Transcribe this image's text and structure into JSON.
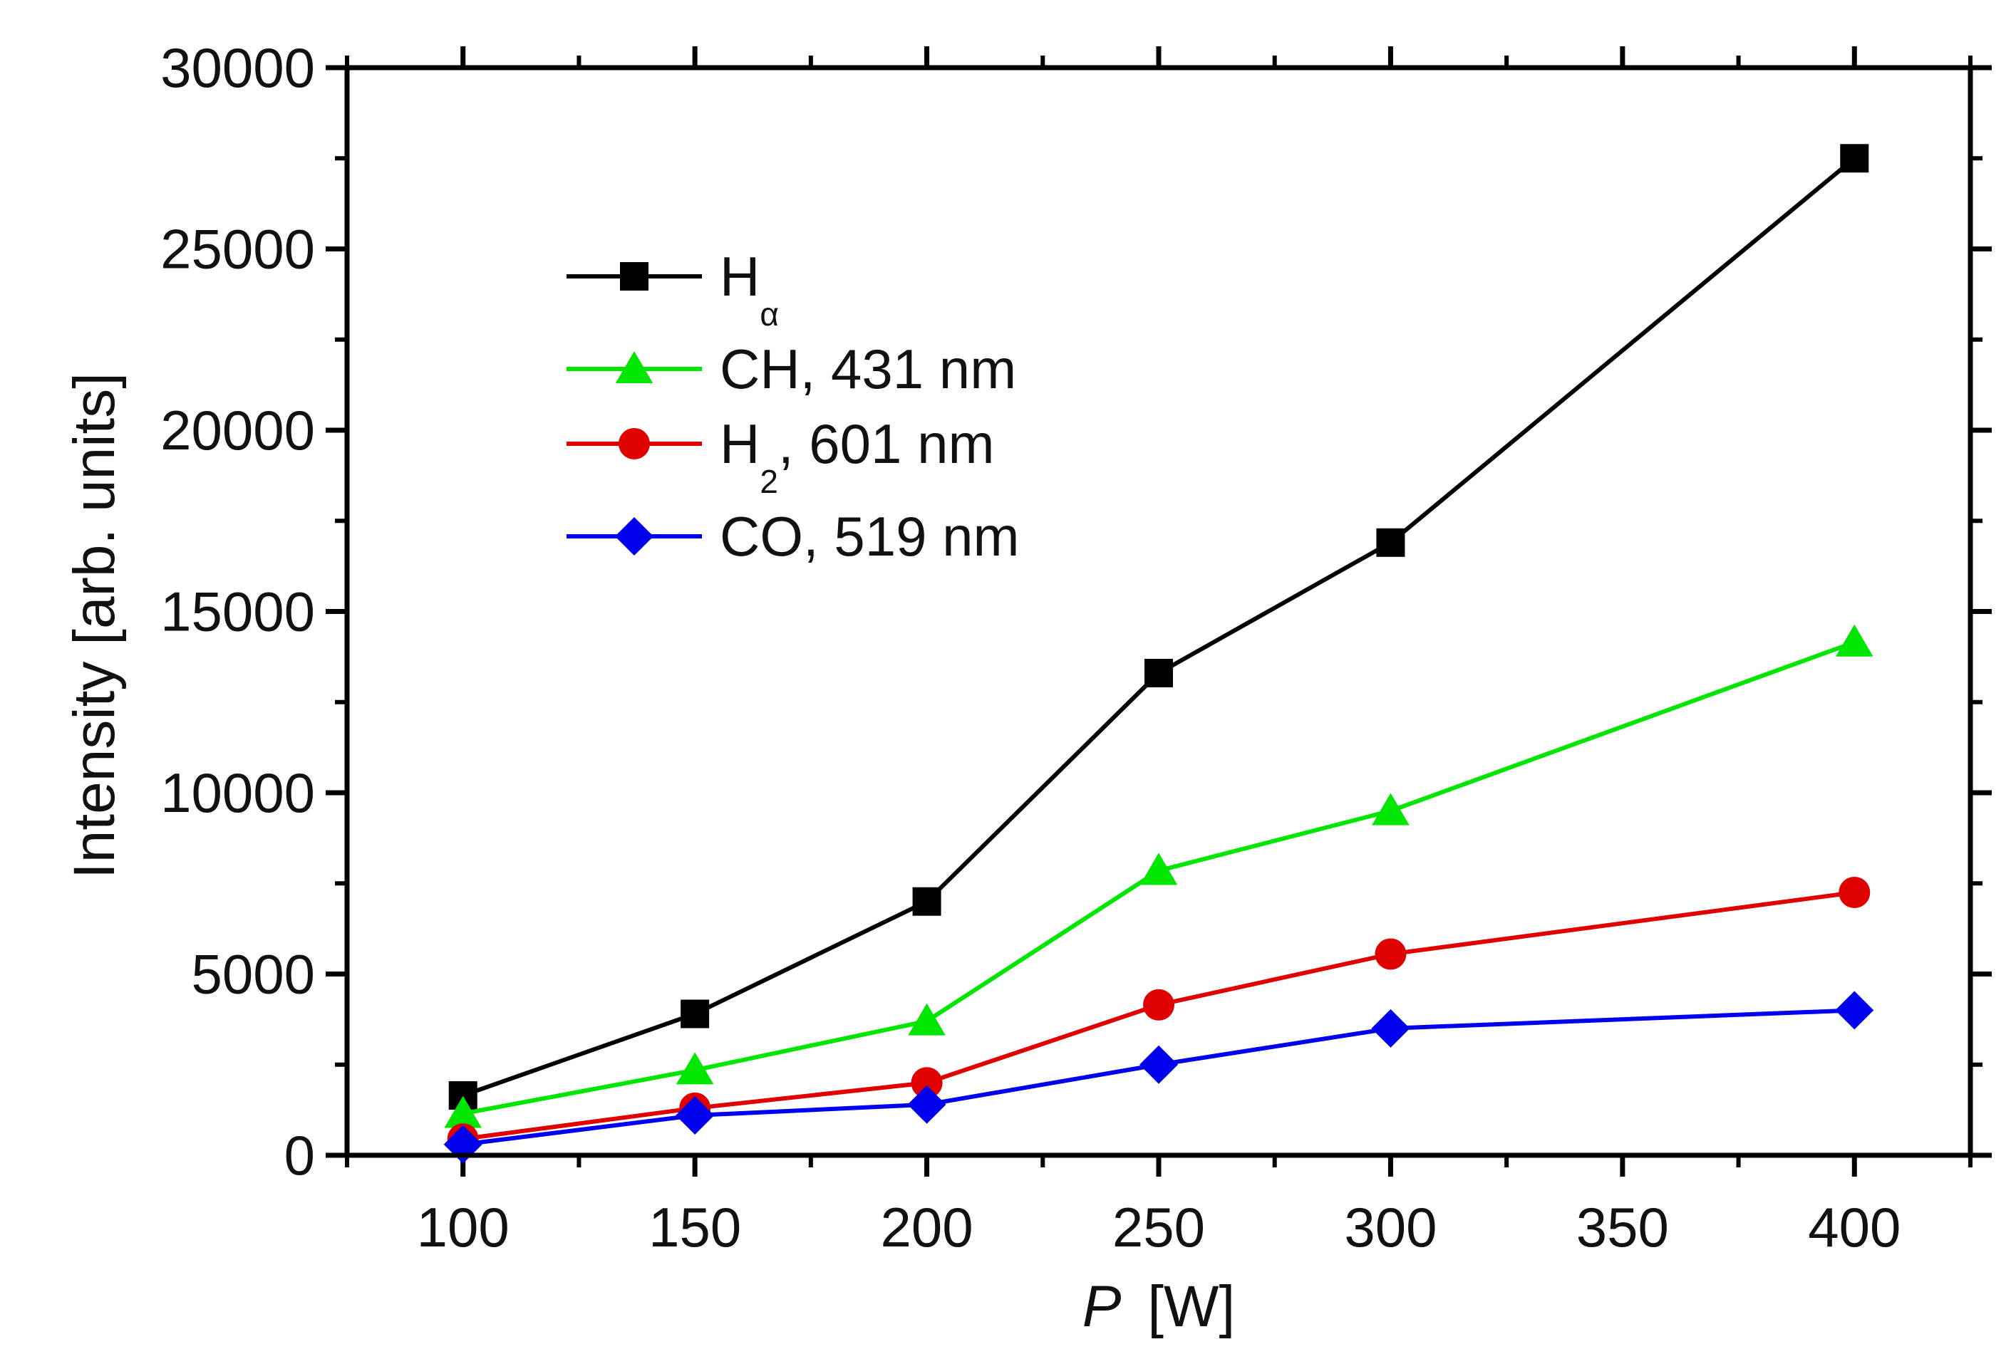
{
  "chart_data": {
    "type": "line",
    "title": "",
    "xlabel_var": "P",
    "xlabel_unit": "[W]",
    "ylabel": "Intensity [arb. units]",
    "xlim": [
      75,
      425
    ],
    "ylim": [
      0,
      30000
    ],
    "x_ticks": [
      100,
      150,
      200,
      250,
      300,
      350,
      400
    ],
    "x_tick_labels": [
      "100",
      "150",
      "200",
      "250",
      "300",
      "350",
      "400"
    ],
    "y_ticks": [
      0,
      5000,
      10000,
      15000,
      20000,
      25000,
      30000
    ],
    "y_tick_labels": [
      "0",
      "5000",
      "10000",
      "15000",
      "20000",
      "25000",
      "30000"
    ],
    "x": [
      100,
      150,
      200,
      250,
      300,
      400
    ],
    "legend_position": "top-left",
    "grid": false,
    "series": [
      {
        "name": "H",
        "name_sub": "α",
        "name_rest": "",
        "marker": "square",
        "color": "#000000",
        "values": [
          1650,
          3900,
          7000,
          13300,
          16900,
          27500
        ]
      },
      {
        "name": "CH, 431 nm",
        "name_sub": "",
        "name_rest": "",
        "marker": "triangle",
        "color": "#00e600",
        "values": [
          1150,
          2350,
          3700,
          7850,
          9500,
          14150
        ]
      },
      {
        "name": "H",
        "name_sub": "2",
        "name_rest": ", 601 nm",
        "marker": "circle",
        "color": "#e00000",
        "values": [
          450,
          1300,
          2000,
          4150,
          5550,
          7250
        ]
      },
      {
        "name": "CO, 519 nm",
        "name_sub": "",
        "name_rest": "",
        "marker": "diamond",
        "color": "#0000ee",
        "values": [
          300,
          1100,
          1400,
          2500,
          3500,
          4000
        ]
      }
    ]
  }
}
